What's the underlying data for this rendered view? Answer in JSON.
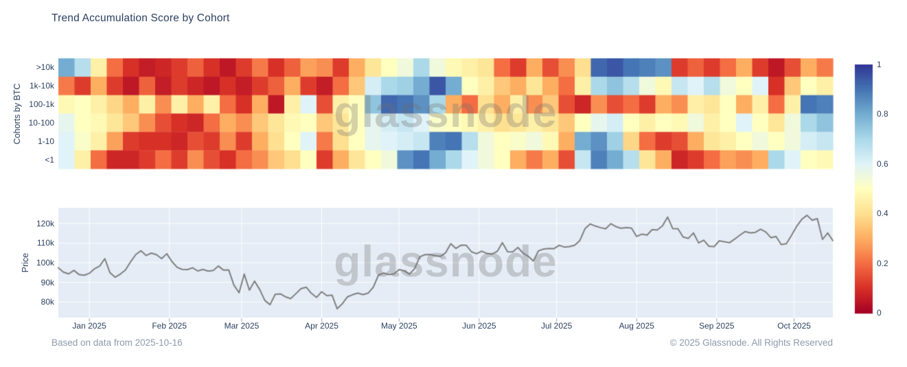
{
  "title": "Trend Accumulation Score by Cohort",
  "watermark": "glassnode",
  "footer": {
    "left": "Based on data from 2025-10-16",
    "right": "© 2025 Glassnode. All Rights Reserved"
  },
  "colors": {
    "title_text": "#2a3f5f",
    "tick_text": "#2a3f5f",
    "footer_text": "#8e99ab",
    "plot_bg": "#e5ecf6",
    "grid": "#ffffff",
    "price_line": "#7f7f7f",
    "tick_mark": "#97a0b2",
    "colormap": "RdYlBu"
  },
  "colorbar": {
    "tick_labels": [
      "1",
      "0.8",
      "0.6",
      "0.4",
      "0.2",
      "0"
    ],
    "tick_values": [
      1,
      0.8,
      0.6,
      0.4,
      0.2,
      0
    ]
  },
  "chart_data": [
    {
      "type": "heatmap",
      "name": "trend-accumulation-heatmap",
      "ylabel": "Cohorts by BTC",
      "rows": [
        ">10k",
        "1k-10k",
        "100-1k",
        "10-100",
        "1-10",
        "<1"
      ],
      "x_range": [
        "2024-12-20",
        "2025-10-16"
      ],
      "zmin": 0,
      "zmax": 1,
      "colorscale": "RdYlBu (0=dark red, 0.5=pale yellow, 1=dark blue)",
      "values": [
        [
          0.8,
          0.68,
          0.45,
          0.2,
          0.1,
          0.06,
          0.08,
          0.12,
          0.18,
          0.1,
          0.05,
          0.12,
          0.22,
          0.1,
          0.18,
          0.28,
          0.25,
          0.12,
          0.3,
          0.42,
          0.5,
          0.55,
          0.7,
          0.55,
          0.48,
          0.45,
          0.42,
          0.2,
          0.12,
          0.3,
          0.15,
          0.25,
          0.4,
          0.92,
          0.95,
          0.9,
          0.88,
          0.85,
          0.12,
          0.18,
          0.12,
          0.2,
          0.3,
          0.12,
          0.05,
          0.15,
          0.3,
          0.22
        ],
        [
          0.22,
          0.12,
          0.3,
          0.12,
          0.05,
          0.18,
          0.06,
          0.12,
          0.08,
          0.05,
          0.1,
          0.06,
          0.12,
          0.18,
          0.3,
          0.12,
          0.06,
          0.2,
          0.35,
          0.62,
          0.7,
          0.72,
          0.8,
          0.95,
          0.8,
          0.5,
          0.45,
          0.35,
          0.3,
          0.42,
          0.3,
          0.2,
          0.45,
          0.7,
          0.75,
          0.68,
          0.55,
          0.48,
          0.65,
          0.6,
          0.68,
          0.55,
          0.5,
          0.6,
          0.1,
          0.35,
          0.5,
          0.45
        ],
        [
          0.48,
          0.5,
          0.45,
          0.38,
          0.3,
          0.45,
          0.25,
          0.45,
          0.3,
          0.45,
          0.2,
          0.1,
          0.3,
          0.05,
          0.45,
          0.6,
          0.15,
          0.45,
          0.5,
          0.75,
          0.92,
          0.9,
          0.85,
          0.7,
          0.3,
          0.2,
          0.4,
          0.3,
          0.45,
          0.25,
          0.35,
          0.15,
          0.08,
          0.25,
          0.15,
          0.2,
          0.12,
          0.3,
          0.25,
          0.45,
          0.42,
          0.5,
          0.3,
          0.45,
          0.2,
          0.45,
          0.9,
          0.88
        ],
        [
          0.58,
          0.5,
          0.48,
          0.42,
          0.35,
          0.25,
          0.15,
          0.1,
          0.08,
          0.2,
          0.3,
          0.25,
          0.35,
          0.42,
          0.48,
          0.5,
          0.35,
          0.42,
          0.5,
          0.58,
          0.62,
          0.65,
          0.6,
          0.52,
          0.5,
          0.48,
          0.45,
          0.4,
          0.42,
          0.45,
          0.42,
          0.35,
          0.5,
          0.58,
          0.62,
          0.5,
          0.45,
          0.5,
          0.48,
          0.55,
          0.45,
          0.5,
          0.6,
          0.5,
          0.42,
          0.55,
          0.7,
          0.75
        ],
        [
          0.6,
          0.52,
          0.45,
          0.28,
          0.12,
          0.1,
          0.1,
          0.08,
          0.15,
          0.12,
          0.25,
          0.12,
          0.3,
          0.4,
          0.5,
          0.6,
          0.22,
          0.4,
          0.5,
          0.58,
          0.6,
          0.62,
          0.65,
          0.88,
          0.9,
          0.68,
          0.55,
          0.5,
          0.52,
          0.55,
          0.48,
          0.3,
          0.8,
          0.85,
          0.72,
          0.38,
          0.2,
          0.12,
          0.15,
          0.3,
          0.42,
          0.45,
          0.5,
          0.55,
          0.5,
          0.55,
          0.62,
          0.65
        ],
        [
          0.6,
          0.45,
          0.2,
          0.08,
          0.08,
          0.12,
          0.2,
          0.12,
          0.25,
          0.15,
          0.1,
          0.2,
          0.25,
          0.35,
          0.4,
          0.5,
          0.12,
          0.3,
          0.42,
          0.5,
          0.55,
          0.85,
          0.9,
          0.8,
          0.7,
          0.6,
          0.55,
          0.5,
          0.3,
          0.22,
          0.3,
          0.15,
          0.65,
          0.88,
          0.8,
          0.68,
          0.42,
          0.3,
          0.08,
          0.12,
          0.2,
          0.28,
          0.25,
          0.3,
          0.7,
          0.6,
          0.5,
          0.48
        ]
      ]
    },
    {
      "type": "line",
      "name": "btc-price",
      "ylabel": "Price",
      "ylim": [
        72,
        128
      ],
      "y_tick_labels": [
        "80k",
        "90k",
        "100k",
        "110k",
        "120k"
      ],
      "y_tick_values": [
        80,
        90,
        100,
        110,
        120
      ],
      "span_days": 300,
      "point_interval_days": 2,
      "x_ticks": [
        {
          "label": "Jan 2025",
          "day": 12
        },
        {
          "label": "Feb 2025",
          "day": 43
        },
        {
          "label": "Mar 2025",
          "day": 71
        },
        {
          "label": "Apr 2025",
          "day": 102
        },
        {
          "label": "May 2025",
          "day": 132
        },
        {
          "label": "Jun 2025",
          "day": 163
        },
        {
          "label": "Jul 2025",
          "day": 193
        },
        {
          "label": "Aug 2025",
          "day": 224
        },
        {
          "label": "Sep 2025",
          "day": 255
        },
        {
          "label": "Oct 2025",
          "day": 285
        }
      ],
      "prices_k": [
        97.4,
        95.2,
        94.3,
        96.1,
        94.0,
        93.6,
        94.6,
        96.9,
        98.3,
        102.1,
        94.9,
        92.6,
        94.2,
        96.3,
        100.5,
        104.2,
        106.1,
        103.7,
        104.9,
        104.1,
        102.1,
        104.6,
        100.6,
        97.7,
        96.6,
        96.5,
        97.4,
        95.8,
        96.6,
        95.7,
        96.1,
        98.3,
        96.2,
        96.3,
        88.6,
        84.7,
        94.2,
        86.0,
        90.6,
        86.3,
        80.7,
        78.6,
        83.9,
        84.1,
        82.6,
        81.7,
        84.2,
        86.8,
        87.5,
        84.4,
        82.3,
        85.2,
        83.2,
        83.5,
        76.5,
        79.1,
        82.6,
        83.7,
        84.5,
        83.7,
        84.5,
        87.5,
        93.7,
        94.7,
        94.0,
        94.3,
        96.5,
        95.9,
        94.2,
        97.0,
        103.0,
        104.1,
        104.2,
        103.6,
        103.2,
        105.1,
        109.7,
        107.3,
        109.0,
        108.9,
        105.6,
        104.6,
        105.9,
        104.7,
        104.4,
        105.8,
        110.2,
        105.6,
        105.5,
        107.8,
        104.9,
        103.3,
        100.9,
        106.1,
        107.0,
        107.3,
        107.2,
        108.9,
        108.0,
        108.2,
        108.9,
        111.3,
        117.4,
        119.8,
        118.7,
        117.9,
        117.3,
        119.9,
        118.4,
        117.6,
        117.9,
        117.7,
        113.4,
        114.6,
        114.1,
        116.9,
        116.7,
        118.8,
        123.3,
        117.4,
        117.3,
        113.1,
        112.4,
        115.2,
        110.1,
        111.5,
        108.4,
        108.2,
        111.2,
        110.7,
        110.2,
        112.1,
        114.1,
        115.9,
        115.2,
        115.5,
        117.1,
        115.7,
        112.8,
        113.4,
        109.3,
        109.7,
        114.0,
        118.6,
        122.2,
        124.2,
        121.7,
        122.5,
        111.9,
        115.2,
        111.3
      ]
    }
  ]
}
